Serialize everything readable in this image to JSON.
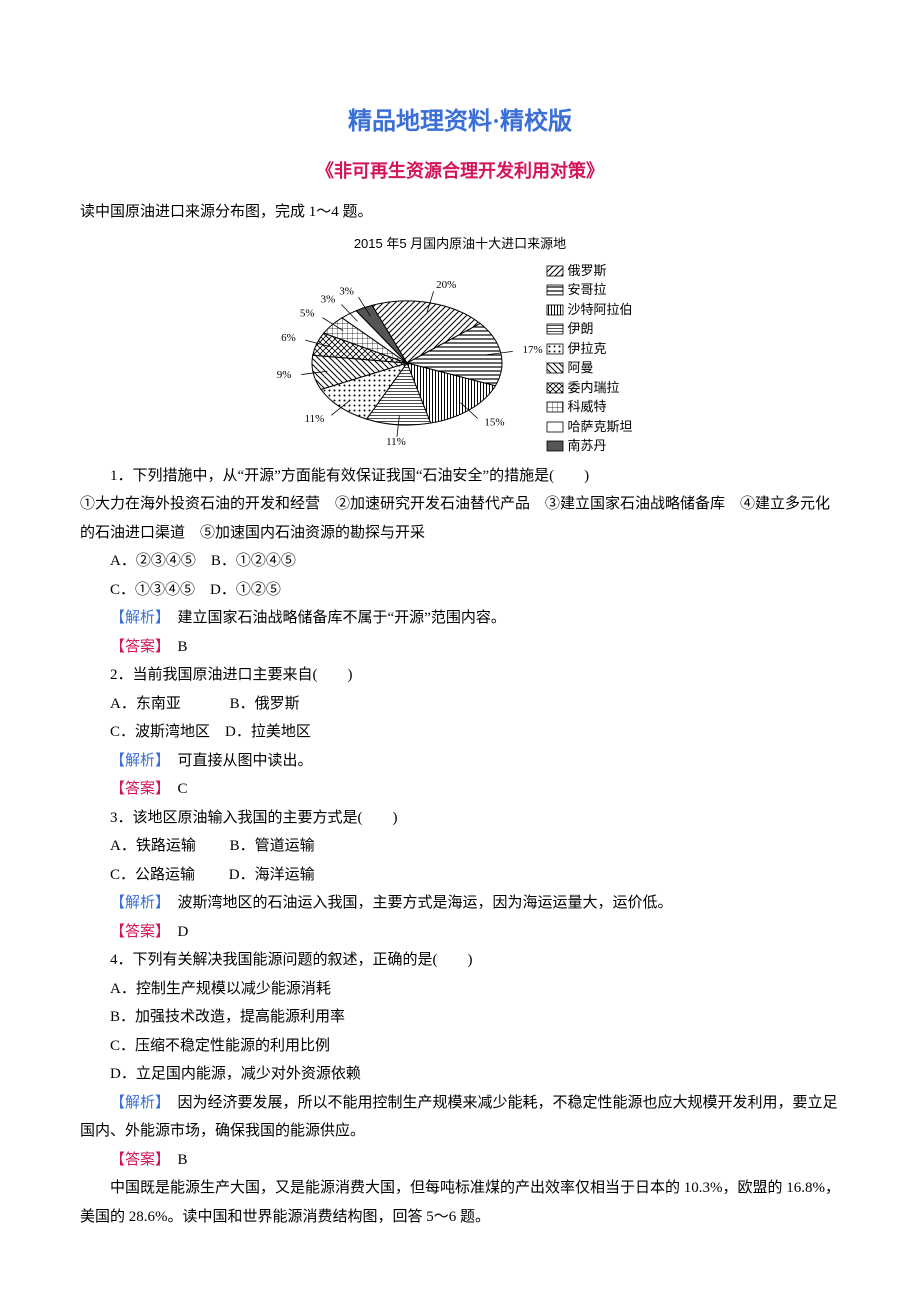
{
  "titles": {
    "main": "精品地理资料·精校版",
    "sub": "《非可再生资源合理开发利用对策》"
  },
  "intro": "读中国原油进口来源分布图，完成 1～4 题。",
  "chart": {
    "type": "pie",
    "title": "2015 年5 月国内原油十大进口来源地",
    "background": "#ffffff",
    "slices": [
      {
        "label": "俄罗斯",
        "value": 20,
        "patternId": "p-diagstripe",
        "showPct": true
      },
      {
        "label": "安哥拉",
        "value": 17,
        "patternId": "p-hstripe",
        "showPct": true
      },
      {
        "label": "沙特阿拉伯",
        "value": 15,
        "patternId": "p-vstripe",
        "showPct": true
      },
      {
        "label": "伊朗",
        "value": 11,
        "patternId": "p-thinh",
        "showPct": true
      },
      {
        "label": "伊拉克",
        "value": 11,
        "patternId": "p-dots",
        "showPct": true
      },
      {
        "label": "阿曼",
        "value": 9,
        "patternId": "p-diagstripe2",
        "showPct": true
      },
      {
        "label": "委内瑞拉",
        "value": 6,
        "patternId": "p-cross",
        "showPct": true
      },
      {
        "label": "科威特",
        "value": 5,
        "patternId": "p-grid",
        "showPct": true
      },
      {
        "label": "哈萨克斯坦",
        "value": 3,
        "patternId": "p-white",
        "showPct": true
      },
      {
        "label": "南苏丹",
        "value": 3,
        "patternId": "p-solid",
        "showPct": true
      }
    ],
    "stroke": "#000",
    "labelColor": "#000",
    "labelFontsize": 11
  },
  "body": [
    {
      "t": "q",
      "text": "1．下列措施中，从“开源”方面能有效保证我国“石油安全”的措施是(　　)"
    },
    {
      "t": "p0",
      "text": "①大力在海外投资石油的开发和经营　②加速研究开发石油替代产品　③建立国家石油战略储备库　④建立多元化的石油进口渠道　⑤加速国内石油资源的勘探与开采"
    },
    {
      "t": "opt",
      "text": "A．②③④⑤　B．①②④⑤"
    },
    {
      "t": "opt",
      "text": "C．①③④⑤　D．①②⑤"
    },
    {
      "t": "exp",
      "label": "【解析】",
      "text": "　建立国家石油战略储备库不属于“开源”范围内容。"
    },
    {
      "t": "ans",
      "label": "【答案】",
      "text": "　B"
    },
    {
      "t": "q",
      "text": "2．当前我国原油进口主要来自(　　)"
    },
    {
      "t": "opt",
      "text": "A．东南亚 　　　B．俄罗斯"
    },
    {
      "t": "opt",
      "text": "C．波斯湾地区　D．拉美地区"
    },
    {
      "t": "exp",
      "label": "【解析】",
      "text": "　可直接从图中读出。"
    },
    {
      "t": "ans",
      "label": "【答案】",
      "text": "　C"
    },
    {
      "t": "q",
      "text": "3．该地区原油输入我国的主要方式是(　　)"
    },
    {
      "t": "opt",
      "text": "A．铁路运输 　　B．管道运输"
    },
    {
      "t": "opt",
      "text": "C．公路运输 　　D．海洋运输"
    },
    {
      "t": "exp",
      "label": "【解析】",
      "text": "　波斯湾地区的石油运入我国，主要方式是海运，因为海运运量大，运价低。"
    },
    {
      "t": "ans",
      "label": "【答案】",
      "text": "　D"
    },
    {
      "t": "q",
      "text": "4．下列有关解决我国能源问题的叙述，正确的是(　　)"
    },
    {
      "t": "opt",
      "text": "A．控制生产规模以减少能源消耗"
    },
    {
      "t": "opt",
      "text": "B．加强技术改造，提高能源利用率"
    },
    {
      "t": "opt",
      "text": "C．压缩不稳定性能源的利用比例"
    },
    {
      "t": "opt",
      "text": "D．立足国内能源，减少对外资源依赖"
    },
    {
      "t": "exp",
      "label": "【解析】",
      "text": "　因为经济要发展，所以不能用控制生产规模来减少能耗，不稳定性能源也应大规模开发利用，要立足国内、外能源市场，确保我国的能源供应。",
      "wrap": true
    },
    {
      "t": "ans",
      "label": "【答案】",
      "text": "　B"
    },
    {
      "t": "q",
      "text": "中国既是能源生产大国，又是能源消费大国，但每吨标准煤的产出效率仅相当于日本的 10.3%，欧盟的 16.8%，美国的 28.6%。读中国和世界能源消费结构图，回答 5～6 题。",
      "wrap": true
    }
  ]
}
